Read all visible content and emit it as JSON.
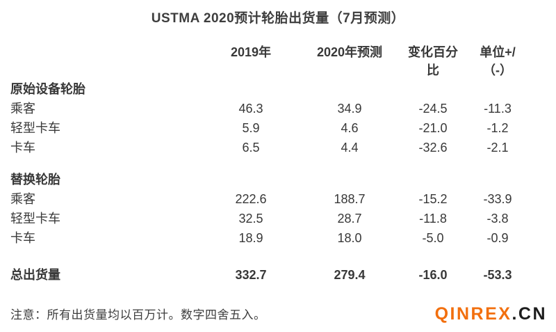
{
  "chart_data": {
    "type": "table",
    "title": "USTMA 2020预计轮胎出货量（7月预测）",
    "columns": [
      "",
      "2019年",
      "2020年预测",
      "变化百分比",
      "单位+/（-）"
    ],
    "sections": [
      {
        "header": "原始设备轮胎",
        "rows": [
          {
            "label": "乘客",
            "values": [
              "46.3",
              "34.9",
              "-24.5",
              "-11.3"
            ]
          },
          {
            "label": "轻型卡车",
            "values": [
              "5.9",
              "4.6",
              "-21.0",
              "-1.2"
            ]
          },
          {
            "label": "卡车",
            "values": [
              "6.5",
              "4.4",
              "-32.6",
              "-2.1"
            ]
          }
        ]
      },
      {
        "header": "替换轮胎",
        "rows": [
          {
            "label": "乘客",
            "values": [
              "222.6",
              "188.7",
              "-15.2",
              "-33.9"
            ]
          },
          {
            "label": "轻型卡车",
            "values": [
              "32.5",
              "28.7",
              "-11.8",
              "-3.8"
            ]
          },
          {
            "label": "卡车",
            "values": [
              "18.9",
              "18.0",
              "-5.0",
              "-0.9"
            ]
          }
        ]
      }
    ],
    "total": {
      "label": "总出货量",
      "values": [
        "332.7",
        "279.4",
        "-16.0",
        "-53.3"
      ]
    },
    "note": "注意：所有出货量均以百万计。数字四舍五入。",
    "units": "百万",
    "layout": {
      "grid": "off",
      "header_rows": 2,
      "text_color": "#383838"
    }
  },
  "table_display": {
    "headers": [
      {
        "line1": "2019年",
        "line2": ""
      },
      {
        "line1": "2020年预测",
        "line2": ""
      },
      {
        "line1": "变化百分",
        "line2": "比"
      },
      {
        "line1": "单位+/",
        "line2": "（-）"
      }
    ]
  },
  "logo": {
    "primary": "QINREX",
    "suffix": ".CN",
    "primary_color": "#F26F0E",
    "suffix_color": "#1D1D1D"
  }
}
